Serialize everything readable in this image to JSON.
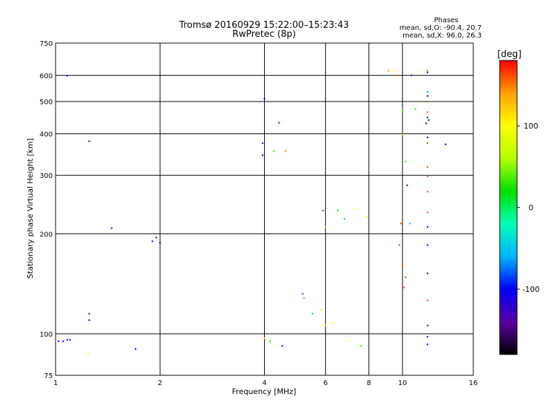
{
  "chart_data": {
    "type": "scatter",
    "title": "Tromsø 20160929 15:22:00–15:23:43",
    "subtitle": "RwPretec (8p)",
    "xlabel": "Frequency [MHz]",
    "ylabel": "Stationary phase Virtual Height [km]",
    "x_scale": "log",
    "y_scale": "log",
    "xlim": [
      1,
      16
    ],
    "ylim": [
      75,
      750
    ],
    "x_ticks": [
      1,
      2,
      4,
      6,
      8,
      10,
      16
    ],
    "y_ticks": [
      75,
      100,
      200,
      300,
      400,
      500,
      600,
      750
    ],
    "x_gridlines": [
      2,
      4,
      6,
      8,
      10
    ],
    "y_gridlines": [
      100,
      200,
      300,
      400,
      500,
      600
    ],
    "grid": true,
    "stats": {
      "heading": "Phases",
      "line1": "mean, sd,O: -90.4, 20.7",
      "line2": "mean, sd,X:  96.0, 26.3"
    },
    "colorbar": {
      "label": "[deg]",
      "ticks": [
        100,
        0,
        -100
      ],
      "tick_labels": [
        "100",
        "0",
        "-100"
      ],
      "range": [
        -180,
        180
      ],
      "colormap": "rainbow",
      "stops": [
        "#000000",
        "#5a00a0",
        "#0000ff",
        "#00b4ff",
        "#00ffb4",
        "#00e000",
        "#b4ff00",
        "#ffff00",
        "#ffa000",
        "#ff0000"
      ]
    },
    "series": [
      {
        "values": [
          [
            1.02,
            95,
            -95
          ],
          [
            1.05,
            95,
            -95
          ],
          [
            1.08,
            96,
            -95
          ],
          [
            1.1,
            96,
            -95
          ],
          [
            1.08,
            598,
            -95
          ],
          [
            1.25,
            380,
            -95
          ],
          [
            1.25,
            115,
            -95
          ],
          [
            1.25,
            110,
            -95
          ],
          [
            1.25,
            87,
            100
          ],
          [
            1.45,
            208,
            -95
          ],
          [
            1.7,
            90,
            -95
          ],
          [
            1.9,
            190,
            -95
          ],
          [
            1.95,
            195,
            -95
          ],
          [
            2.0,
            188,
            -100
          ],
          [
            4.0,
            510,
            -120
          ],
          [
            4.4,
            432,
            -90
          ],
          [
            3.95,
            375,
            -95
          ],
          [
            3.95,
            345,
            -110
          ],
          [
            4.6,
            355,
            140
          ],
          [
            4.25,
            355,
            30
          ],
          [
            5.15,
            132,
            -80
          ],
          [
            5.2,
            128,
            -40
          ],
          [
            5.5,
            115,
            -60
          ],
          [
            5.8,
            118,
            80
          ],
          [
            6.0,
            106,
            90
          ],
          [
            6.3,
            108,
            80
          ],
          [
            5.9,
            235,
            -80
          ],
          [
            6.0,
            210,
            80
          ],
          [
            6.5,
            235,
            20
          ],
          [
            6.8,
            222,
            -60
          ],
          [
            7.3,
            238,
            100
          ],
          [
            7.9,
            225,
            80
          ],
          [
            4.0,
            97,
            110
          ],
          [
            4.15,
            95,
            30
          ],
          [
            4.5,
            92,
            -95
          ],
          [
            7.0,
            95,
            100
          ],
          [
            7.6,
            92,
            30
          ],
          [
            9.1,
            620,
            150
          ],
          [
            9.7,
            600,
            150
          ],
          [
            9.5,
            618,
            100
          ],
          [
            10.6,
            600,
            -95
          ],
          [
            10.9,
            475,
            40
          ],
          [
            10.0,
            470,
            40
          ],
          [
            10.0,
            398,
            120
          ],
          [
            10.2,
            330,
            30
          ],
          [
            10.3,
            280,
            -95
          ],
          [
            11.8,
            620,
            150
          ],
          [
            11.8,
            612,
            -95
          ],
          [
            11.8,
            535,
            -60
          ],
          [
            11.8,
            520,
            -110
          ],
          [
            11.8,
            465,
            160
          ],
          [
            11.8,
            448,
            -95
          ],
          [
            11.7,
            430,
            -95
          ],
          [
            11.9,
            440,
            -95
          ],
          [
            11.8,
            390,
            -95
          ],
          [
            11.8,
            375,
            160
          ],
          [
            11.8,
            318,
            160
          ],
          [
            11.8,
            298,
            160
          ],
          [
            11.8,
            268,
            160
          ],
          [
            11.8,
            232,
            160
          ],
          [
            11.8,
            210,
            -95
          ],
          [
            11.8,
            185,
            -95
          ],
          [
            11.8,
            152,
            -95
          ],
          [
            11.8,
            126,
            160
          ],
          [
            11.8,
            106,
            -95
          ],
          [
            11.8,
            93,
            -95
          ],
          [
            11.8,
            98,
            -95
          ],
          [
            13.3,
            372,
            -95
          ],
          [
            10.0,
            160,
            160
          ],
          [
            10.2,
            148,
            160
          ],
          [
            10.1,
            138,
            160
          ],
          [
            9.8,
            185,
            160
          ],
          [
            9.9,
            215,
            160
          ],
          [
            10.5,
            215,
            -60
          ]
        ]
      }
    ]
  }
}
